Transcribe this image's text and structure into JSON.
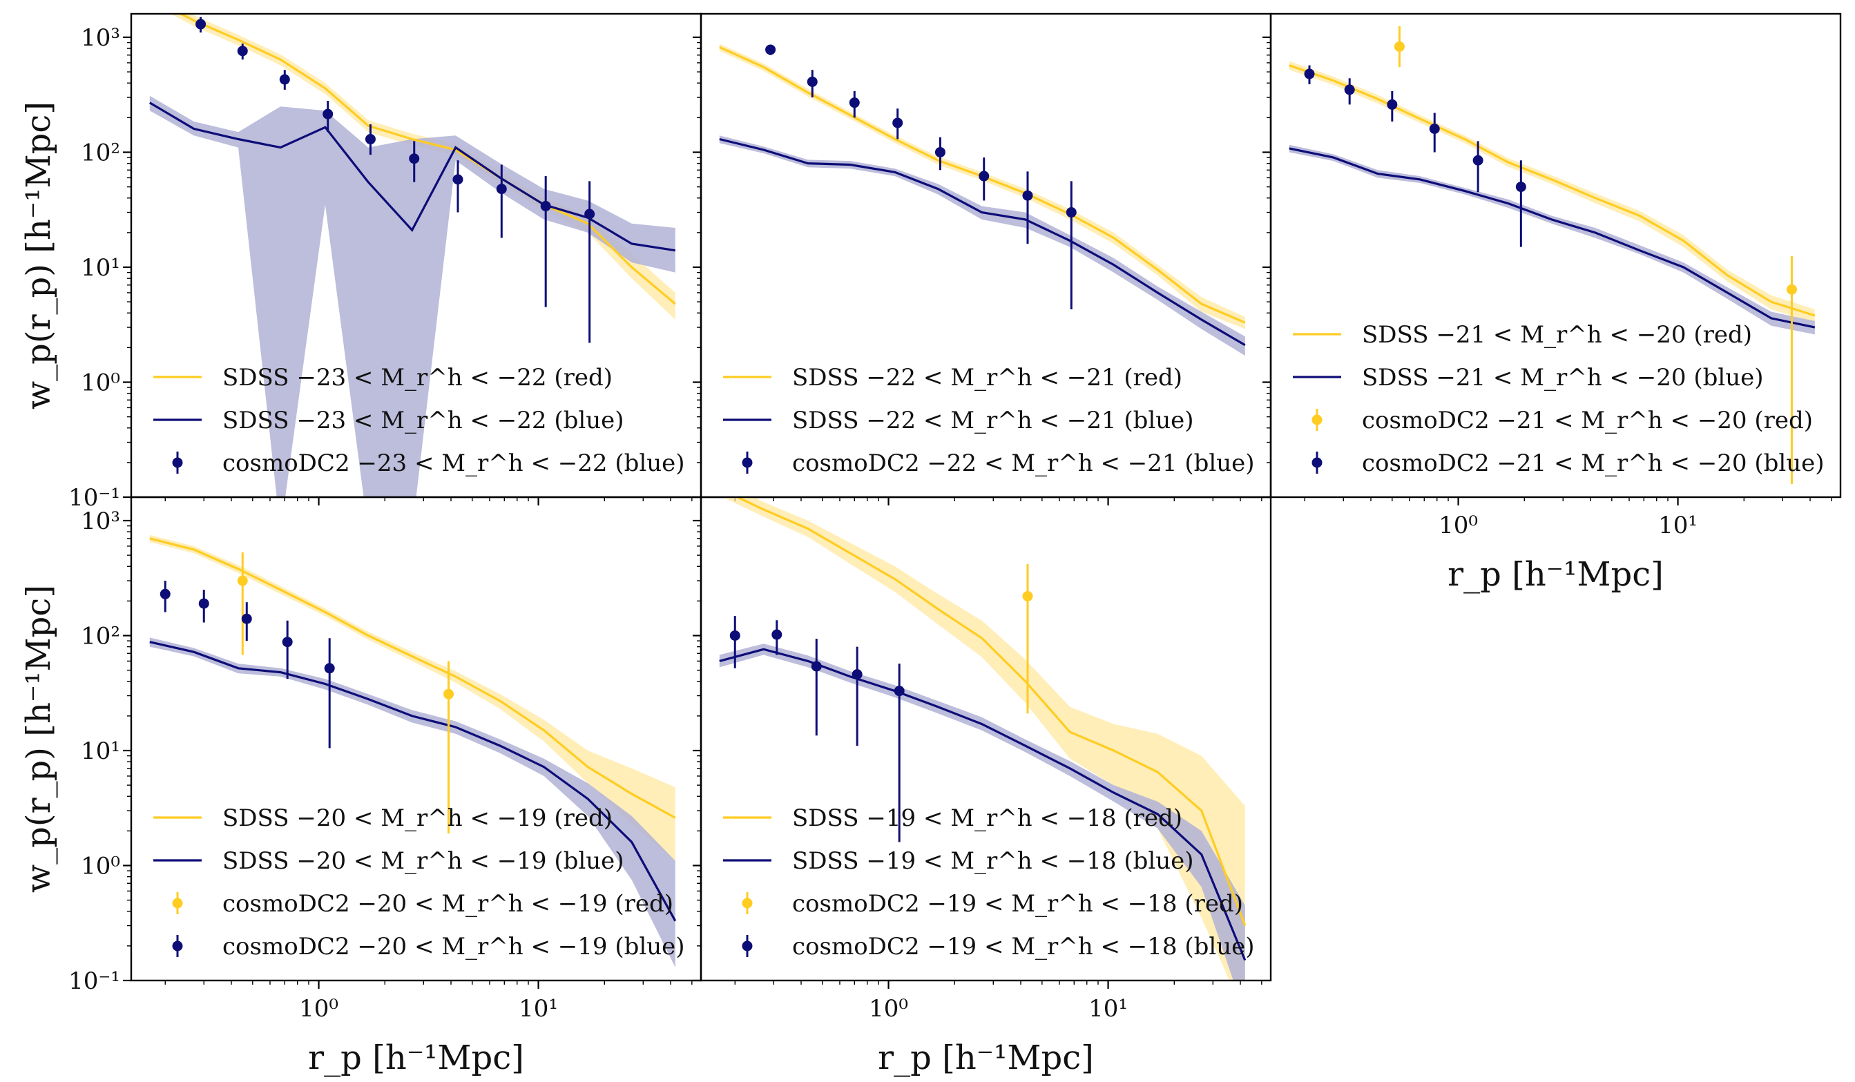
{
  "colors": {
    "red": "#ffcc22",
    "red_band": "#ffe79a",
    "blue": "#0d0d78",
    "blue_band": "#b2b2d6",
    "axis": "#000000"
  },
  "axes": {
    "xlabel": "r_p   [h⁻¹Mpc]",
    "ylabel": "w_p(r_p)   [h⁻¹Mpc]",
    "xlim": [
      0.14,
      55
    ],
    "ylim": [
      0.1,
      1600
    ],
    "xticks": [
      {
        "v": 1,
        "label": "10⁰"
      },
      {
        "v": 10,
        "label": "10¹"
      }
    ],
    "yticks": [
      {
        "v": 0.1,
        "label": "10⁻¹"
      },
      {
        "v": 1,
        "label": "10⁰"
      },
      {
        "v": 10,
        "label": "10¹"
      },
      {
        "v": 100,
        "label": "10²"
      },
      {
        "v": 1000,
        "label": "10³"
      }
    ],
    "scale": "log-log"
  },
  "chart_data": [
    {
      "type": "line",
      "panel": "top-left",
      "title": "",
      "xlabel": "",
      "ylabel": "w_p(r_p)   [h⁻¹Mpc]",
      "series": [
        {
          "name": "SDSS −23 < M_r^h < −22 (red)",
          "color": "red",
          "kind": "line",
          "x": [
            0.17,
            0.27,
            0.43,
            0.67,
            1.07,
            1.68,
            2.66,
            4.2,
            6.7,
            10.6,
            16.8,
            26.6,
            42
          ],
          "y": [
            2200,
            1400,
            950,
            640,
            360,
            170,
            130,
            105,
            60,
            35,
            24,
            10,
            4.8
          ],
          "lo": [
            2000,
            1250,
            850,
            570,
            320,
            150,
            115,
            95,
            54,
            31,
            20,
            8,
            3.5
          ],
          "hi": [
            2400,
            1550,
            1050,
            710,
            400,
            190,
            145,
            117,
            68,
            40,
            28,
            13,
            6
          ]
        },
        {
          "name": "SDSS −23 < M_r^h < −22 (blue)",
          "color": "blue",
          "kind": "line",
          "x": [
            0.17,
            0.27,
            0.43,
            0.67,
            1.07,
            1.68,
            2.66,
            4.2,
            6.7,
            10.6,
            16.8,
            26.6,
            42
          ],
          "y": [
            270,
            160,
            130,
            110,
            165,
            55,
            21,
            110,
            60,
            35,
            27,
            16,
            14
          ],
          "lo": [
            230,
            140,
            110,
            0.05,
            35,
            0.05,
            0.05,
            85,
            45,
            26,
            20,
            11,
            9
          ],
          "hi": [
            310,
            185,
            150,
            250,
            230,
            110,
            130,
            140,
            80,
            48,
            38,
            24,
            22
          ]
        },
        {
          "name": "cosmoDC2 −23 < M_r^h < −22 (blue)",
          "color": "blue",
          "kind": "points",
          "x": [
            0.29,
            0.45,
            0.7,
            1.1,
            1.72,
            2.72,
            4.3,
            6.8,
            10.8,
            17.1
          ],
          "y": [
            1300,
            760,
            430,
            215,
            130,
            88,
            58,
            48,
            34,
            29
          ],
          "lo": [
            1100,
            640,
            350,
            150,
            95,
            55,
            30,
            18,
            4.5,
            2.2
          ],
          "hi": [
            1500,
            880,
            520,
            280,
            175,
            125,
            85,
            78,
            62,
            56
          ]
        }
      ]
    },
    {
      "type": "line",
      "panel": "top-middle",
      "title": "",
      "xlabel": "",
      "ylabel": "",
      "series": [
        {
          "name": "SDSS −22 < M_r^h < −21 (red)",
          "color": "red",
          "kind": "line",
          "x": [
            0.17,
            0.27,
            0.43,
            0.67,
            1.07,
            1.68,
            2.66,
            4.2,
            6.7,
            10.6,
            16.8,
            26.6,
            42
          ],
          "y": [
            820,
            550,
            330,
            210,
            130,
            85,
            62,
            44,
            29,
            18,
            9.5,
            4.8,
            3.3
          ],
          "lo": [
            760,
            510,
            305,
            195,
            120,
            78,
            57,
            40,
            26,
            16,
            8.5,
            4.1,
            2.9
          ],
          "hi": [
            880,
            590,
            355,
            225,
            140,
            92,
            67,
            48,
            32,
            20,
            10.5,
            5.5,
            3.7
          ]
        },
        {
          "name": "SDSS −22 < M_r^h < −21 (blue)",
          "color": "blue",
          "kind": "line",
          "x": [
            0.17,
            0.27,
            0.43,
            0.67,
            1.07,
            1.68,
            2.66,
            4.2,
            6.7,
            10.6,
            16.8,
            26.6,
            42
          ],
          "y": [
            130,
            105,
            80,
            78,
            67,
            48,
            30,
            26,
            17,
            10.5,
            6,
            3.5,
            2.1
          ],
          "lo": [
            120,
            98,
            74,
            72,
            62,
            43,
            26,
            22,
            15,
            9,
            5.2,
            2.9,
            1.7
          ],
          "hi": [
            140,
            112,
            86,
            84,
            72,
            53,
            34,
            30,
            19,
            12,
            6.8,
            4.1,
            2.5
          ]
        },
        {
          "name": "cosmoDC2 −22 < M_r^h < −21 (blue)",
          "color": "blue",
          "kind": "points",
          "x": [
            0.29,
            0.45,
            0.7,
            1.1,
            1.72,
            2.72,
            4.3,
            6.8
          ],
          "y": [
            780,
            410,
            270,
            180,
            100,
            62,
            42,
            30
          ],
          "lo": [
            700,
            300,
            200,
            130,
            70,
            38,
            16,
            4.3
          ],
          "hi": [
            860,
            520,
            340,
            240,
            135,
            90,
            68,
            56
          ]
        }
      ]
    },
    {
      "type": "line",
      "panel": "top-right",
      "title": "",
      "xlabel": "r_p   [h⁻¹Mpc]",
      "ylabel": "",
      "series": [
        {
          "name": "SDSS −21 < M_r^h < −20 (red)",
          "color": "red",
          "kind": "line",
          "x": [
            0.17,
            0.27,
            0.43,
            0.67,
            1.07,
            1.68,
            2.66,
            4.2,
            6.7,
            10.6,
            16.8,
            26.6,
            42
          ],
          "y": [
            570,
            420,
            290,
            195,
            130,
            82,
            58,
            40,
            28,
            17,
            8.5,
            5,
            3.8
          ],
          "lo": [
            520,
            385,
            265,
            180,
            120,
            75,
            53,
            36,
            25,
            15,
            7.5,
            4.3,
            3.3
          ],
          "hi": [
            620,
            455,
            315,
            210,
            140,
            89,
            63,
            44,
            31,
            19,
            9.5,
            5.7,
            4.3
          ]
        },
        {
          "name": "SDSS −21 < M_r^h < −20 (blue)",
          "color": "blue",
          "kind": "line",
          "x": [
            0.17,
            0.27,
            0.43,
            0.67,
            1.07,
            1.68,
            2.66,
            4.2,
            6.7,
            10.6,
            16.8,
            26.6,
            42
          ],
          "y": [
            108,
            90,
            65,
            58,
            46,
            36,
            26,
            20,
            14,
            10,
            6,
            3.6,
            3
          ],
          "lo": [
            100,
            84,
            60,
            54,
            43,
            33,
            24,
            18,
            13,
            9,
            5.3,
            3.1,
            2.6
          ],
          "hi": [
            116,
            96,
            70,
            62,
            49,
            39,
            28,
            22,
            15.5,
            11,
            6.7,
            4.1,
            3.4
          ]
        },
        {
          "name": "cosmoDC2 −21 < M_r^h < −20 (red)",
          "color": "red",
          "kind": "points",
          "x": [
            0.54,
            33
          ],
          "y": [
            830,
            6.4
          ],
          "lo": [
            550,
            0.13
          ],
          "hi": [
            1250,
            12.5
          ]
        },
        {
          "name": "cosmoDC2 −21 < M_r^h < −20 (blue)",
          "color": "blue",
          "kind": "points",
          "x": [
            0.21,
            0.32,
            0.5,
            0.78,
            1.23,
            1.93
          ],
          "y": [
            480,
            350,
            260,
            160,
            85,
            50
          ],
          "lo": [
            390,
            260,
            185,
            100,
            45,
            15
          ],
          "hi": [
            570,
            440,
            340,
            220,
            125,
            85
          ]
        }
      ]
    },
    {
      "type": "line",
      "panel": "bottom-left",
      "title": "",
      "xlabel": "r_p   [h⁻¹Mpc]",
      "ylabel": "w_p(r_p)   [h⁻¹Mpc]",
      "series": [
        {
          "name": "SDSS −20 < M_r^h < −19 (red)",
          "color": "red",
          "kind": "line",
          "x": [
            0.17,
            0.27,
            0.43,
            0.67,
            1.07,
            1.68,
            2.66,
            4.2,
            6.7,
            10.6,
            16.8,
            26.6,
            42
          ],
          "y": [
            700,
            560,
            380,
            250,
            160,
            100,
            66,
            44,
            27,
            15,
            7.2,
            4.2,
            2.6
          ],
          "lo": [
            650,
            520,
            350,
            230,
            148,
            92,
            60,
            39,
            23,
            12,
            5.2,
            2.3,
            1.1
          ],
          "hi": [
            750,
            600,
            410,
            270,
            172,
            108,
            72,
            49,
            31,
            18.5,
            10,
            7,
            4.8
          ]
        },
        {
          "name": "SDSS −20 < M_r^h < −19 (blue)",
          "color": "blue",
          "kind": "line",
          "x": [
            0.17,
            0.27,
            0.43,
            0.67,
            1.07,
            1.68,
            2.66,
            4.2,
            6.7,
            10.6,
            16.8,
            26.6,
            42
          ],
          "y": [
            88,
            72,
            52,
            48,
            38,
            28,
            20,
            16,
            11,
            7.2,
            3.8,
            1.6,
            0.33
          ],
          "lo": [
            80,
            66,
            47,
            44,
            34,
            25,
            17.5,
            14,
            9.5,
            6,
            2.7,
            0.75,
            0.13
          ],
          "hi": [
            96,
            78,
            57,
            52,
            42,
            31,
            22.5,
            18,
            12.5,
            8.5,
            5.2,
            2.7,
            1.1
          ]
        },
        {
          "name": "cosmoDC2 −20 < M_r^h < −19 (red)",
          "color": "red",
          "kind": "points",
          "x": [
            0.45,
            3.9
          ],
          "y": [
            300,
            31
          ],
          "lo": [
            68,
            1.9
          ],
          "hi": [
            530,
            60
          ]
        },
        {
          "name": "cosmoDC2 −20 < M_r^h < −19 (blue)",
          "color": "blue",
          "kind": "points",
          "x": [
            0.2,
            0.3,
            0.47,
            0.72,
            1.12
          ],
          "y": [
            230,
            190,
            140,
            88,
            52
          ],
          "lo": [
            160,
            130,
            90,
            42,
            10.5
          ],
          "hi": [
            300,
            250,
            195,
            135,
            95
          ]
        }
      ]
    },
    {
      "type": "line",
      "panel": "bottom-middle",
      "title": "",
      "xlabel": "r_p   [h⁻¹Mpc]",
      "ylabel": "",
      "series": [
        {
          "name": "SDSS −19 < M_r^h < −18 (red)",
          "color": "red",
          "kind": "line",
          "x": [
            0.17,
            0.27,
            0.43,
            0.67,
            1.07,
            1.68,
            2.66,
            4.2,
            6.7,
            10.6,
            16.8,
            26.6,
            42
          ],
          "y": [
            1900,
            1250,
            850,
            520,
            310,
            170,
            95,
            40,
            14.5,
            10,
            6.5,
            3,
            0.3
          ],
          "lo": [
            1650,
            1080,
            720,
            420,
            240,
            125,
            65,
            26,
            8.5,
            5,
            2.1,
            0.35,
            0.05
          ],
          "hi": [
            2200,
            1450,
            1000,
            640,
            400,
            230,
            135,
            62,
            24,
            17,
            14,
            9,
            3.3
          ]
        },
        {
          "name": "SDSS −19 < M_r^h < −18 (blue)",
          "color": "blue",
          "kind": "line",
          "x": [
            0.17,
            0.27,
            0.43,
            0.67,
            1.07,
            1.68,
            2.66,
            4.2,
            6.7,
            10.6,
            16.8,
            26.6,
            42
          ],
          "y": [
            60,
            76,
            60,
            44,
            33,
            24,
            17,
            11,
            7,
            4.3,
            2.8,
            1.25,
            0.15
          ],
          "lo": [
            53,
            68,
            53,
            39,
            29,
            21,
            15,
            9.7,
            6,
            3.6,
            2.1,
            0.65,
            0.05
          ],
          "hi": [
            68,
            85,
            67,
            49,
            37,
            27,
            19.5,
            12.5,
            8.1,
            5,
            3.6,
            2,
            0.45
          ]
        },
        {
          "name": "cosmoDC2 −19 < M_r^h < −18 (red)",
          "color": "red",
          "kind": "points",
          "x": [
            4.3
          ],
          "y": [
            220
          ],
          "lo": [
            21
          ],
          "hi": [
            420
          ]
        },
        {
          "name": "cosmoDC2 −19 < M_r^h < −18 (blue)",
          "color": "blue",
          "kind": "points",
          "x": [
            0.2,
            0.31,
            0.47,
            0.72,
            1.12
          ],
          "y": [
            100,
            102,
            54,
            46,
            33
          ],
          "lo": [
            52,
            68,
            13.5,
            11,
            1.6
          ],
          "hi": [
            148,
            136,
            94,
            80,
            57
          ]
        }
      ]
    }
  ]
}
